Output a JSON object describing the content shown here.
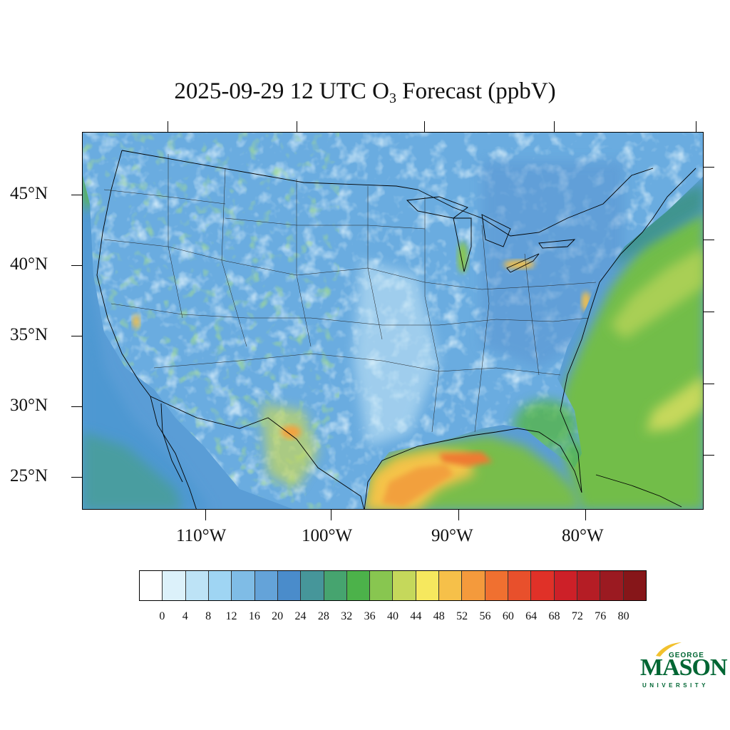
{
  "title": {
    "main": "2025-09-29 12 UTC O",
    "subscript": "3",
    "suffix": " Forecast (ppbV)"
  },
  "map": {
    "lat_labels": [
      "45°N",
      "40°N",
      "35°N",
      "30°N",
      "25°N"
    ],
    "lon_labels": [
      "110°W",
      "100°W",
      "90°W",
      "80°W"
    ],
    "field": "ozone concentration",
    "colors": {
      "ocean_atlantic": "#7fc24a",
      "ocean_gulf": "#f5a947",
      "land_base": "#6ba7d8",
      "land_low": "#bfe3f5",
      "land_mid": "#4a8fcf",
      "land_green": "#55b548"
    }
  },
  "colorbar": {
    "colors": [
      "#ffffff",
      "#dcf1fa",
      "#bde3f6",
      "#9fd5f3",
      "#7fbce6",
      "#64a3d9",
      "#4a8ccb",
      "#46969a",
      "#46a46f",
      "#4cb24a",
      "#88c650",
      "#c5d85b",
      "#f6e85e",
      "#f6c049",
      "#f49a3c",
      "#f07030",
      "#e8502c",
      "#e03128",
      "#cd2028",
      "#b51d25",
      "#9b1a21",
      "#861619"
    ],
    "labels": [
      "0",
      "4",
      "8",
      "12",
      "16",
      "20",
      "24",
      "28",
      "32",
      "36",
      "40",
      "44",
      "48",
      "52",
      "56",
      "60",
      "64",
      "68",
      "72",
      "76",
      "80"
    ]
  },
  "logo": {
    "george": "GEORGE",
    "mason": "MASON",
    "university": "UNIVERSITY"
  }
}
